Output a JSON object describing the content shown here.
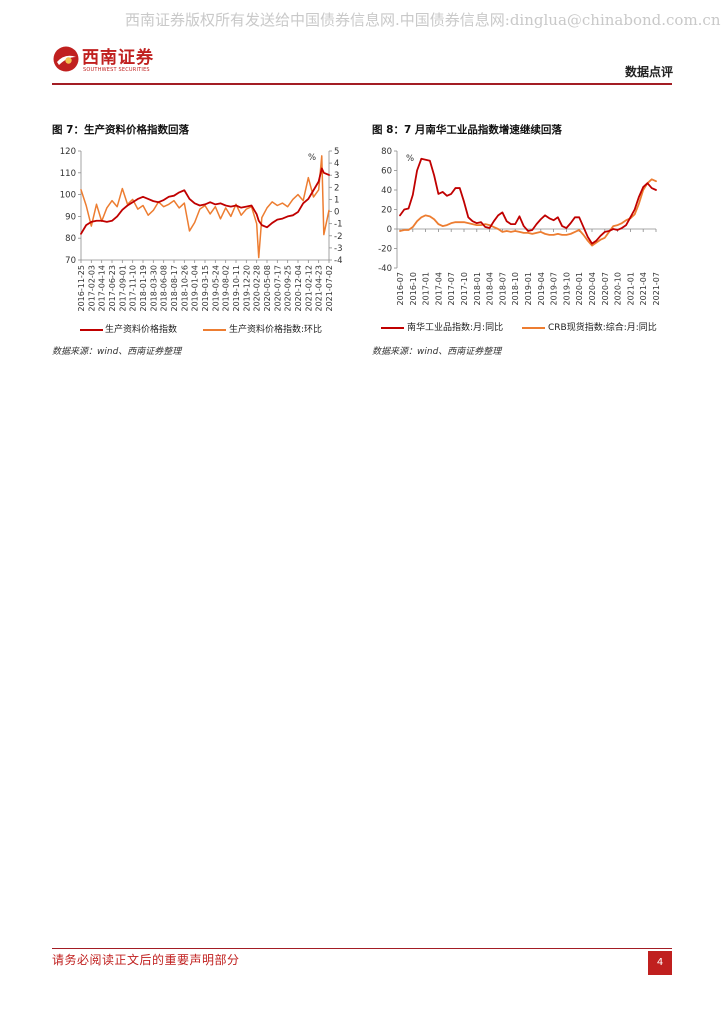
{
  "header": {
    "watermark": "西南证券版权所有发送给中国债券信息网.中国债券信息网:dinglua@chinabond.com.cn",
    "logo_cn": "西南证券",
    "logo_en": "SOUTHWEST SECURITIES",
    "section": "数据点评",
    "accent_color": "#a31d24"
  },
  "footer": {
    "disclaimer": "请务必阅读正文后的重要声明部分",
    "page_number": "4"
  },
  "chart_data": [
    {
      "type": "line",
      "title": "图 7：生产资料价格指数回落",
      "source": "数据来源：wind、西南证券整理",
      "legend": "bottom",
      "grid": false,
      "x": [
        "2016-11-25",
        "2016-12-30",
        "2017-02-03",
        "2017-03-10",
        "2017-04-14",
        "2017-05-19",
        "2017-06-23",
        "2017-07-28",
        "2017-09-01",
        "2017-10-06",
        "2017-11-10",
        "2017-12-15",
        "2018-01-19",
        "2018-02-23",
        "2018-03-30",
        "2018-05-04",
        "2018-06-08",
        "2018-07-13",
        "2018-08-17",
        "2018-09-21",
        "2018-10-26",
        "2018-11-30",
        "2019-01-04",
        "2019-02-08",
        "2019-03-15",
        "2019-04-19",
        "2019-05-24",
        "2019-06-28",
        "2019-08-02",
        "2019-09-06",
        "2019-10-11",
        "2019-11-15",
        "2019-12-20",
        "2020-01-24",
        "2020-02-28",
        "2020-03-13",
        "2020-04-03",
        "2020-05-08",
        "2020-06-12",
        "2020-07-17",
        "2020-08-21",
        "2020-09-25",
        "2020-10-30",
        "2020-12-04",
        "2021-01-08",
        "2021-02-12",
        "2021-03-19",
        "2021-04-23",
        "2021-05-14",
        "2021-05-28",
        "2021-07-02"
      ],
      "x_ticks": [
        "2016-11-25",
        "2017-02-03",
        "2017-04-14",
        "2017-06-23",
        "2017-09-01",
        "2017-11-10",
        "2018-01-19",
        "2018-03-30",
        "2018-06-08",
        "2018-08-17",
        "2018-10-26",
        "2019-01-04",
        "2019-03-15",
        "2019-05-24",
        "2019-08-02",
        "2019-10-11",
        "2019-12-20",
        "2020-02-28",
        "2020-05-08",
        "2020-07-17",
        "2020-09-25",
        "2020-12-04",
        "2021-02-12",
        "2021-04-23",
        "2021-07-02"
      ],
      "y_left": {
        "range": [
          70,
          120
        ],
        "ticks": [
          120,
          110,
          100,
          90,
          80,
          70
        ]
      },
      "y_right": {
        "range": [
          -4,
          5
        ],
        "ticks": [
          5,
          4,
          3,
          2,
          1,
          0,
          -1,
          -2,
          -3,
          -4
        ],
        "unit": "%"
      },
      "series": [
        {
          "name": "生产资料价格指数",
          "color": "#c00000",
          "secondary_axis": false,
          "values": [
            82,
            86,
            87.5,
            88,
            88,
            87.5,
            88,
            90,
            93,
            95,
            96.5,
            98,
            99,
            98,
            97,
            96.5,
            97.5,
            99,
            99.5,
            101,
            102,
            98,
            96,
            95,
            95.5,
            96.5,
            95.5,
            96,
            95,
            94.5,
            95,
            94,
            94.5,
            95,
            91,
            88,
            86,
            85,
            87,
            88.5,
            89,
            90,
            90.5,
            92,
            96,
            98,
            102,
            106,
            112,
            110,
            109
          ]
        },
        {
          "name": "生产资料价格指数:环比",
          "color": "#ed7d31",
          "secondary_axis": true,
          "values": [
            1.8,
            0.5,
            -1.2,
            0.6,
            -0.8,
            0.3,
            0.9,
            0.4,
            1.9,
            0.6,
            1.0,
            0.2,
            0.5,
            -0.3,
            0.1,
            0.8,
            0.4,
            0.6,
            0.9,
            0.3,
            0.7,
            -1.6,
            -0.9,
            0.2,
            0.5,
            -0.2,
            0.4,
            -0.6,
            0.3,
            -0.4,
            0.6,
            -0.3,
            0.2,
            0.4,
            -1.0,
            -3.8,
            -0.5,
            0.3,
            0.8,
            0.5,
            0.7,
            0.4,
            1.0,
            1.4,
            0.9,
            2.8,
            1.2,
            1.8,
            4.6,
            -1.9,
            0.1
          ]
        }
      ]
    },
    {
      "type": "line",
      "title": "图 8：7 月南华工业品指数增速继续回落",
      "source": "数据来源：wind、西南证券整理",
      "legend": "bottom",
      "grid": false,
      "x": [
        "2016-07",
        "2016-08",
        "2016-09",
        "2016-10",
        "2016-11",
        "2016-12",
        "2017-01",
        "2017-02",
        "2017-03",
        "2017-04",
        "2017-05",
        "2017-06",
        "2017-07",
        "2017-08",
        "2017-09",
        "2017-10",
        "2017-11",
        "2017-12",
        "2018-01",
        "2018-02",
        "2018-03",
        "2018-04",
        "2018-05",
        "2018-06",
        "2018-07",
        "2018-08",
        "2018-09",
        "2018-10",
        "2018-11",
        "2018-12",
        "2019-01",
        "2019-02",
        "2019-03",
        "2019-04",
        "2019-05",
        "2019-06",
        "2019-07",
        "2019-08",
        "2019-09",
        "2019-10",
        "2019-11",
        "2019-12",
        "2020-01",
        "2020-02",
        "2020-03",
        "2020-04",
        "2020-05",
        "2020-06",
        "2020-07",
        "2020-08",
        "2020-09",
        "2020-10",
        "2020-11",
        "2020-12",
        "2021-01",
        "2021-02",
        "2021-03",
        "2021-04",
        "2021-05",
        "2021-06",
        "2021-07"
      ],
      "x_ticks": [
        "2016-07",
        "2016-10",
        "2017-01",
        "2017-04",
        "2017-07",
        "2017-10",
        "2018-01",
        "2018-04",
        "2018-07",
        "2018-10",
        "2019-01",
        "2019-04",
        "2019-07",
        "2019-10",
        "2020-01",
        "2020-04",
        "2020-07",
        "2020-10",
        "2021-01",
        "2021-04",
        "2021-07"
      ],
      "y": {
        "range": [
          -40,
          80
        ],
        "ticks": [
          80,
          60,
          40,
          20,
          0,
          -20,
          -40
        ],
        "unit": "%"
      },
      "series": [
        {
          "name": "南华工业品指数:月:同比",
          "color": "#c00000",
          "values": [
            14,
            20,
            21,
            35,
            60,
            72,
            71,
            70,
            55,
            36,
            38,
            34,
            36,
            42,
            42,
            28,
            12,
            8,
            6,
            7,
            2,
            1,
            8,
            14,
            17,
            8,
            5,
            5,
            13,
            3,
            -2,
            -1,
            5,
            10,
            14,
            11,
            9,
            12,
            3,
            1,
            6,
            12,
            12,
            2,
            -8,
            -15,
            -12,
            -7,
            -3,
            -2,
            0,
            -1,
            1,
            4,
            12,
            20,
            33,
            43,
            47,
            42,
            40
          ]
        },
        {
          "name": "CRB现货指数:综合:月:同比",
          "color": "#ed7d31",
          "values": [
            -2,
            -1,
            -1,
            2,
            8,
            12,
            14,
            13,
            10,
            5,
            3,
            4,
            6,
            7,
            7,
            7,
            6,
            5,
            4,
            4,
            5,
            4,
            2,
            0,
            -3,
            -2,
            -3,
            -2,
            -3,
            -4,
            -4,
            -5,
            -4,
            -3,
            -5,
            -6,
            -6,
            -5,
            -6,
            -6,
            -5,
            -3,
            -1,
            -6,
            -12,
            -17,
            -14,
            -11,
            -9,
            -3,
            3,
            4,
            6,
            9,
            11,
            15,
            26,
            40,
            47,
            51,
            49
          ]
        }
      ]
    }
  ]
}
